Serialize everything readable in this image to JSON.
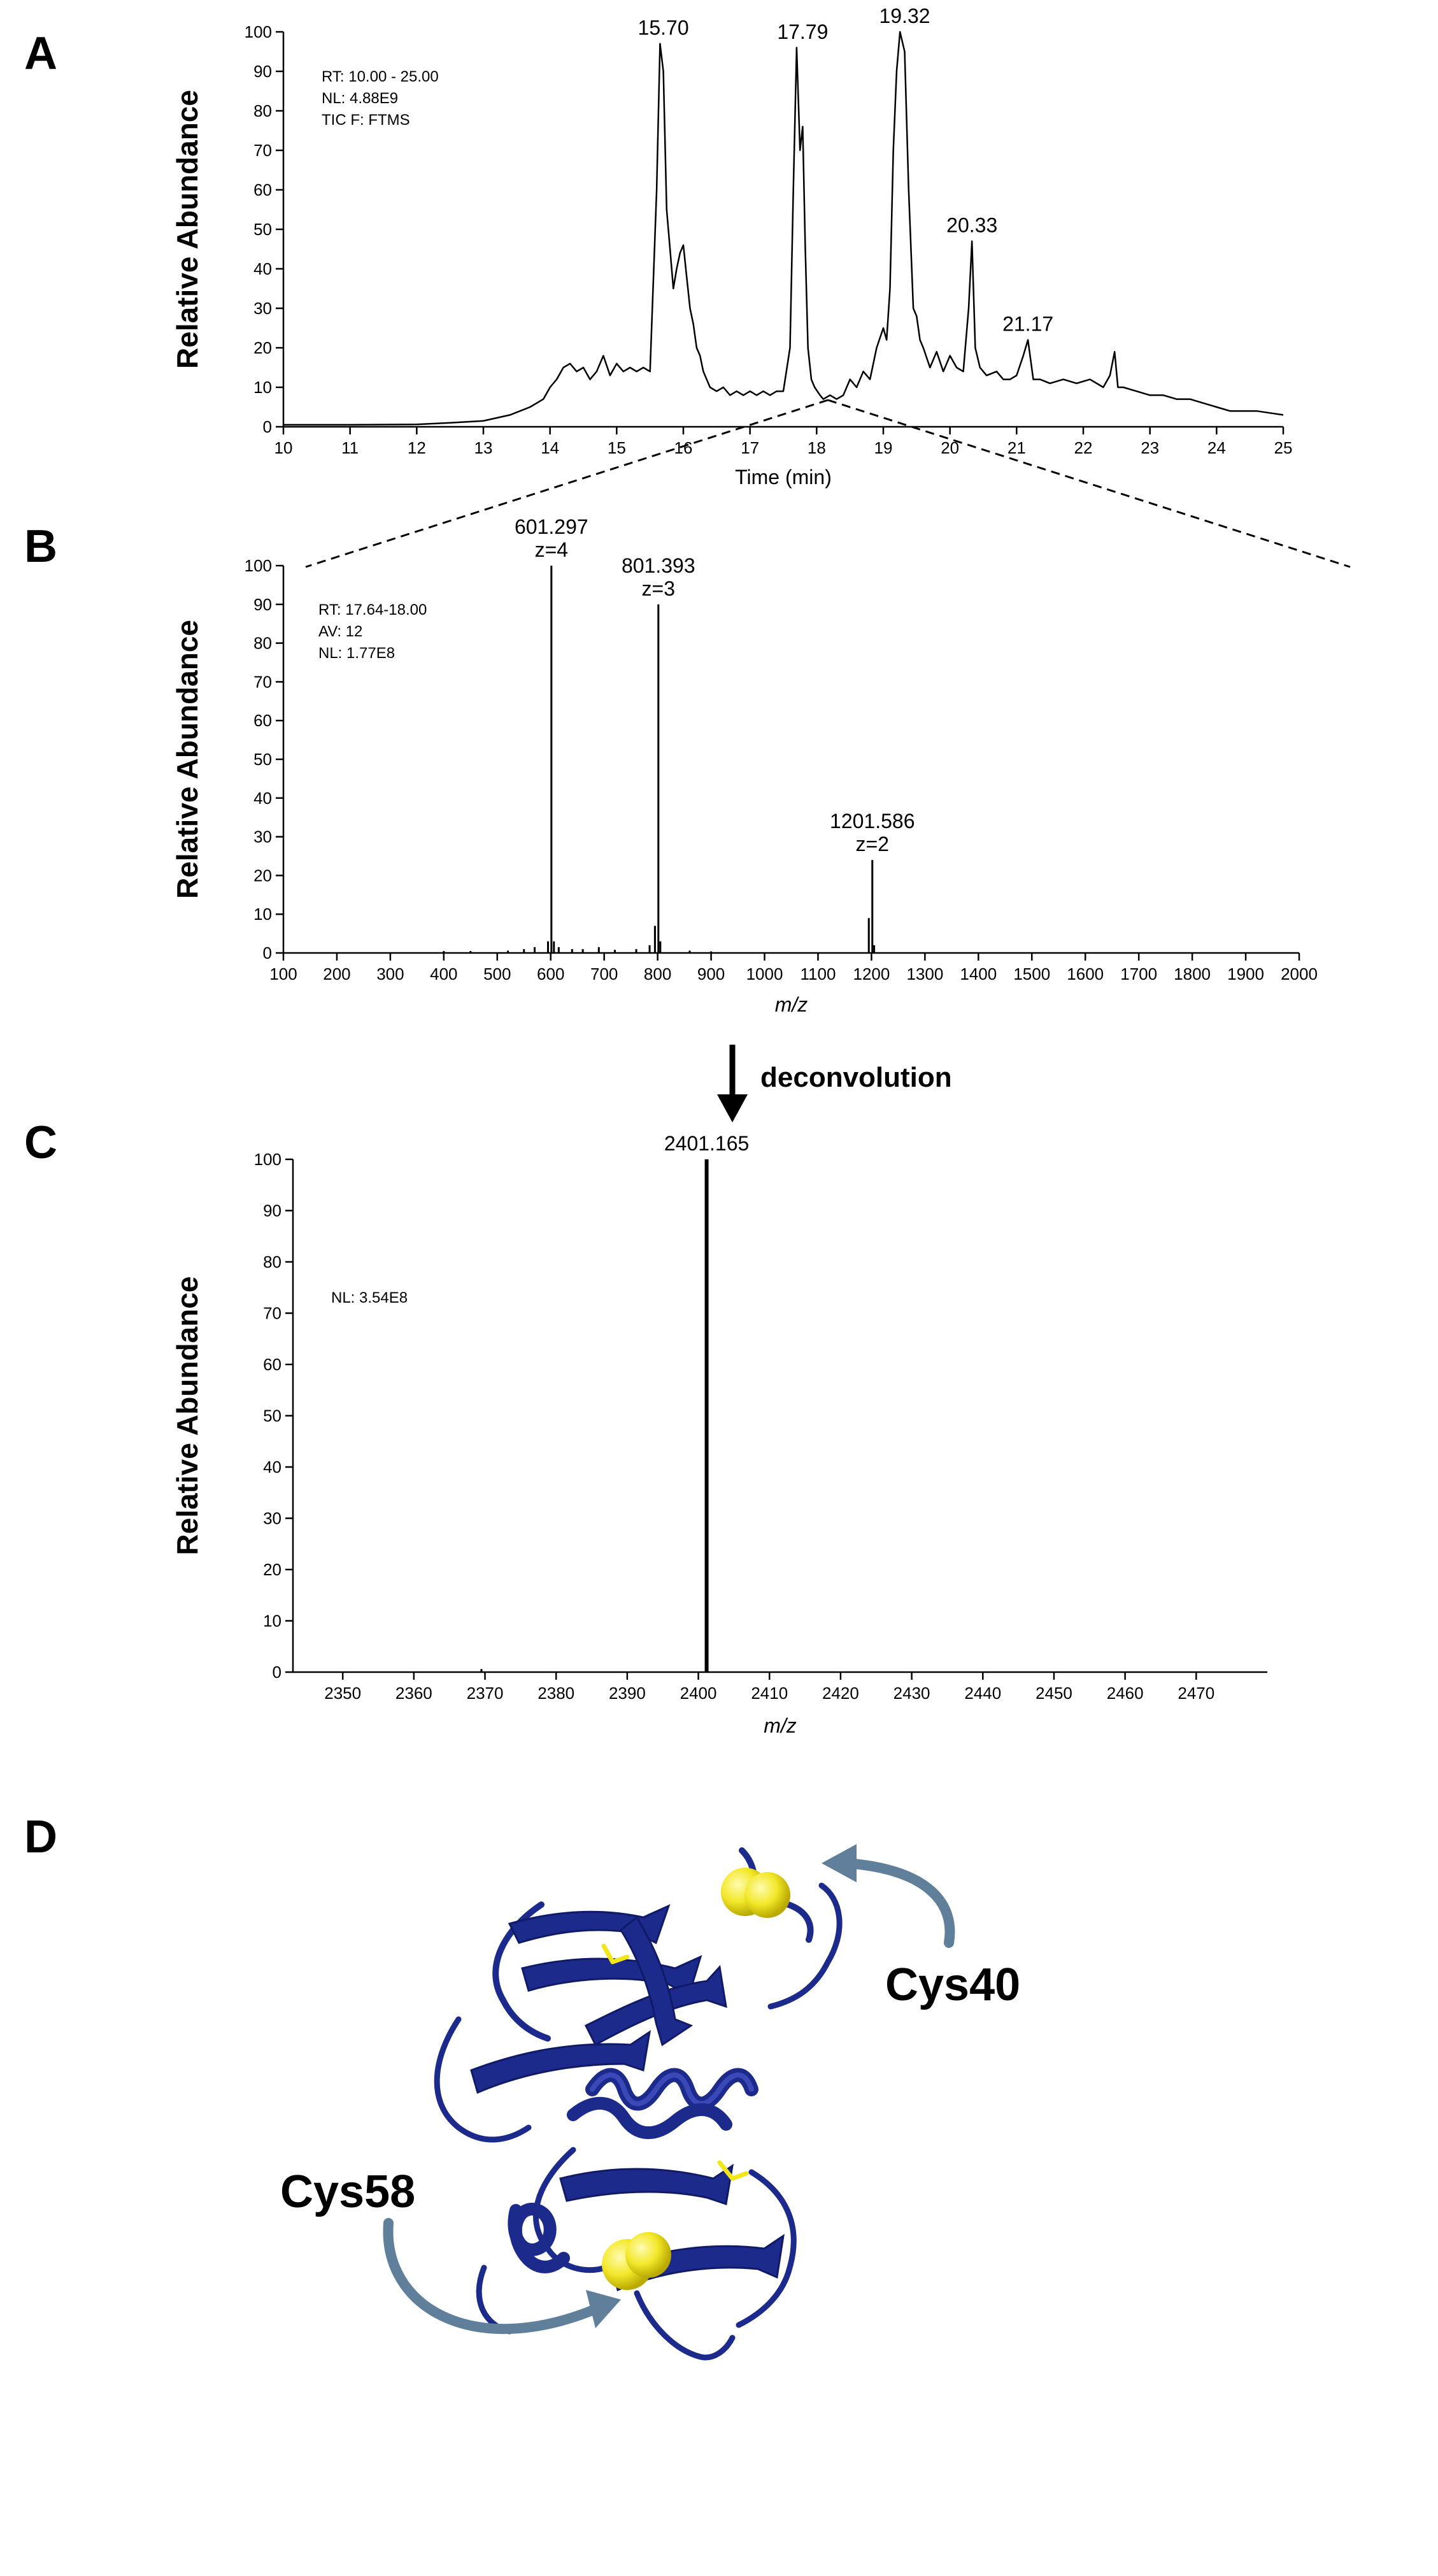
{
  "figure": {
    "panel_labels": [
      "A",
      "B",
      "C",
      "D"
    ],
    "deconvolution_label": "deconvolution",
    "protein_labels": {
      "cys40": "Cys40",
      "cys58": "Cys58"
    },
    "colors": {
      "line": "#000000",
      "protein": "#1c2a8c",
      "protein_light": "#3a48b8",
      "sulfur": "#f0e61a",
      "arrow": "#5f7f9a"
    }
  },
  "chart_data": [
    {
      "panel": "A",
      "type": "line",
      "title": "",
      "xlabel": "Time (min)",
      "ylabel": "Relative Abundance",
      "xlim": [
        10,
        25
      ],
      "ylim": [
        0,
        100
      ],
      "xticks": [
        10,
        11,
        12,
        13,
        14,
        15,
        16,
        17,
        18,
        19,
        20,
        21,
        22,
        23,
        24,
        25
      ],
      "yticks": [
        0,
        10,
        20,
        30,
        40,
        50,
        60,
        70,
        80,
        90,
        100
      ],
      "info": [
        "RT: 10.00 - 25.00",
        "NL: 4.88E9",
        "TIC F: FTMS"
      ],
      "series": [
        {
          "name": "TIC",
          "x": [
            10,
            11,
            12,
            12.5,
            13,
            13.4,
            13.7,
            13.9,
            14.0,
            14.1,
            14.2,
            14.3,
            14.4,
            14.5,
            14.6,
            14.7,
            14.8,
            14.9,
            15.0,
            15.1,
            15.2,
            15.3,
            15.4,
            15.5,
            15.6,
            15.65,
            15.7,
            15.75,
            15.8,
            15.85,
            15.9,
            15.95,
            16.0,
            16.05,
            16.1,
            16.15,
            16.2,
            16.25,
            16.3,
            16.4,
            16.5,
            16.6,
            16.7,
            16.8,
            16.9,
            17.0,
            17.1,
            17.2,
            17.3,
            17.4,
            17.5,
            17.6,
            17.65,
            17.7,
            17.75,
            17.79,
            17.83,
            17.87,
            17.92,
            17.97,
            18.05,
            18.1,
            18.2,
            18.3,
            18.4,
            18.5,
            18.6,
            18.7,
            18.8,
            18.9,
            19.0,
            19.05,
            19.1,
            19.15,
            19.2,
            19.25,
            19.32,
            19.38,
            19.45,
            19.5,
            19.55,
            19.6,
            19.7,
            19.8,
            19.9,
            20.0,
            20.1,
            20.2,
            20.28,
            20.33,
            20.38,
            20.45,
            20.55,
            20.7,
            20.8,
            20.9,
            21.0,
            21.1,
            21.17,
            21.25,
            21.35,
            21.5,
            21.7,
            21.9,
            22.1,
            22.3,
            22.4,
            22.47,
            22.52,
            22.6,
            22.8,
            23.0,
            23.2,
            23.4,
            23.6,
            23.8,
            24.0,
            24.2,
            24.4,
            24.6,
            24.8,
            25.0
          ],
          "y": [
            0.5,
            0.5,
            0.6,
            1,
            1.5,
            3,
            5,
            7,
            10,
            12,
            15,
            16,
            14,
            15,
            12,
            14,
            18,
            13,
            16,
            14,
            15,
            14,
            15,
            14,
            60,
            97,
            90,
            55,
            45,
            35,
            40,
            44,
            46,
            38,
            30,
            26,
            20,
            18,
            14,
            10,
            9,
            10,
            8,
            9,
            8,
            9,
            8,
            9,
            8,
            9,
            9,
            20,
            60,
            96,
            70,
            76,
            45,
            20,
            12,
            10,
            8,
            7,
            8,
            7,
            8,
            12,
            10,
            14,
            12,
            20,
            25,
            22,
            35,
            70,
            90,
            100,
            95,
            60,
            30,
            28,
            22,
            20,
            15,
            19,
            14,
            18,
            15,
            14,
            30,
            47,
            20,
            15,
            13,
            14,
            12,
            12,
            13,
            18,
            22,
            12,
            12,
            11,
            12,
            11,
            12,
            10,
            13,
            19,
            10,
            10,
            9,
            8,
            8,
            7,
            7,
            6,
            5,
            4,
            4,
            4,
            3.5,
            3
          ]
        }
      ],
      "annotations": [
        {
          "x": 15.7,
          "y": 97,
          "label": "15.70"
        },
        {
          "x": 17.79,
          "y": 96,
          "label": "17.79"
        },
        {
          "x": 19.32,
          "y": 100,
          "label": "19.32"
        },
        {
          "x": 20.33,
          "y": 47,
          "label": "20.33"
        },
        {
          "x": 21.17,
          "y": 22,
          "label": "21.17"
        }
      ]
    },
    {
      "panel": "B",
      "type": "bar",
      "title": "",
      "xlabel": "m/z",
      "ylabel": "Relative Abundance",
      "xlim": [
        100,
        2000
      ],
      "ylim": [
        0,
        100
      ],
      "xticks": [
        100,
        200,
        300,
        400,
        500,
        600,
        700,
        800,
        900,
        1000,
        1100,
        1200,
        1300,
        1400,
        1500,
        1600,
        1700,
        1800,
        1900,
        2000
      ],
      "yticks": [
        0,
        10,
        20,
        30,
        40,
        50,
        60,
        70,
        80,
        90,
        100
      ],
      "info": [
        "RT: 17.64-18.00",
        "AV: 12",
        "NL: 1.77E8"
      ],
      "x": [
        400,
        450,
        520,
        550,
        570,
        595,
        601.297,
        606,
        615,
        640,
        660,
        690,
        720,
        760,
        785,
        795,
        801.393,
        805,
        860,
        900,
        1195,
        1201.586,
        1205
      ],
      "values": [
        0.5,
        0.5,
        0.6,
        1,
        1.5,
        3,
        100,
        3,
        1.5,
        1,
        1,
        1.5,
        0.8,
        1,
        2,
        7,
        90,
        3,
        0.6,
        0.4,
        9,
        24,
        2
      ],
      "annotations": [
        {
          "x": 601.297,
          "y": 100,
          "label": "601.297",
          "sub": "z=4"
        },
        {
          "x": 801.393,
          "y": 90,
          "label": "801.393",
          "sub": "z=3"
        },
        {
          "x": 1201.586,
          "y": 24,
          "label": "1201.586",
          "sub": "z=2"
        }
      ]
    },
    {
      "panel": "C",
      "type": "bar",
      "title": "",
      "xlabel": "m/z",
      "ylabel": "Relative Abundance",
      "xlim": [
        2343,
        2480
      ],
      "ylim": [
        0,
        100
      ],
      "xticks": [
        2350,
        2360,
        2370,
        2380,
        2390,
        2400,
        2410,
        2420,
        2430,
        2440,
        2450,
        2460,
        2470
      ],
      "yticks": [
        0,
        10,
        20,
        30,
        40,
        50,
        60,
        70,
        80,
        90,
        100
      ],
      "info": [
        "NL: 3.54E8"
      ],
      "x": [
        2369.5,
        2401.165
      ],
      "values": [
        0.6,
        100
      ],
      "annotations": [
        {
          "x": 2401.165,
          "y": 100,
          "label": "2401.165"
        }
      ]
    }
  ]
}
